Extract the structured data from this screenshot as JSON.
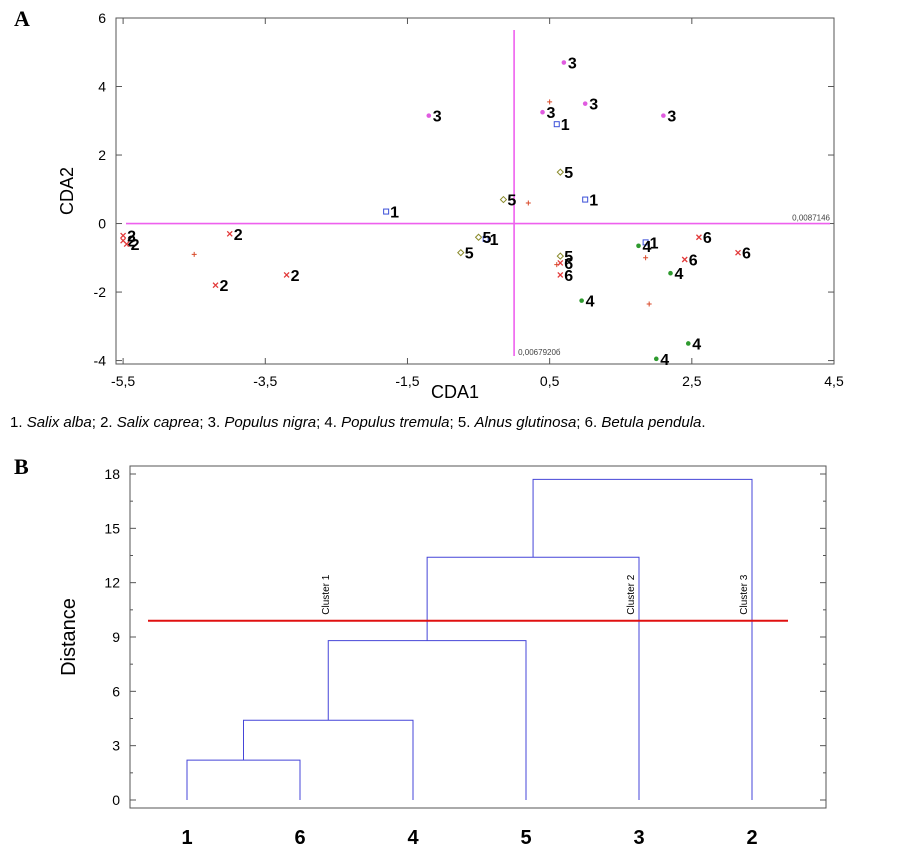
{
  "panels": {
    "a_label": "A",
    "b_label": "B"
  },
  "legend": [
    {
      "num": "1.",
      "name": "Salix alba",
      "sep": ";"
    },
    {
      "num": "2.",
      "name": "Salix caprea",
      "sep": ";"
    },
    {
      "num": "3.",
      "name": "Populus nigra",
      "sep": ";"
    },
    {
      "num": "4.",
      "name": "Populus tremula",
      "sep": ";"
    },
    {
      "num": "5.",
      "name": "Alnus glutinosa",
      "sep": ";"
    },
    {
      "num": "6.",
      "name": "Betula pendula",
      "sep": "."
    }
  ],
  "chart_data": [
    {
      "type": "scatter",
      "xlabel": "CDA1",
      "ylabel": "CDA2",
      "xlim": [
        -5.6,
        4.5
      ],
      "ylim": [
        -4.1,
        6.0
      ],
      "xticks": [
        -5.5,
        -3.5,
        -1.5,
        0.5,
        2.5,
        4.5
      ],
      "xtick_labels": [
        "-5,5",
        "-3,5",
        "-1,5",
        "0,5",
        "2,5",
        "4,5"
      ],
      "yticks": [
        -4,
        -2,
        0,
        2,
        4,
        6
      ],
      "ytick_labels": [
        "-4",
        "-2",
        "0",
        "2",
        "4",
        "6"
      ],
      "axis_annotations": {
        "x_axis": "0,0087146",
        "y_axis": "0,0067920б"
      },
      "group_colors": {
        "1": "#3b4fd8",
        "2": "#e23a3a",
        "3": "#e05be0",
        "4": "#2e9a2e",
        "5": "#8a8a2a",
        "6": "#e23a3a"
      },
      "points": [
        {
          "group": "1",
          "x": -1.8,
          "y": 0.35
        },
        {
          "group": "1",
          "x": 0.6,
          "y": 2.9
        },
        {
          "group": "1",
          "x": 1.0,
          "y": 0.7
        },
        {
          "group": "1",
          "x": -0.4,
          "y": -0.45
        },
        {
          "group": "1",
          "x": 1.85,
          "y": -0.55
        },
        {
          "group": "2",
          "x": -5.5,
          "y": -0.35
        },
        {
          "group": "2",
          "x": -5.5,
          "y": -0.5
        },
        {
          "group": "2",
          "x": -5.45,
          "y": -0.6
        },
        {
          "group": "2",
          "x": -4.0,
          "y": -0.3
        },
        {
          "group": "2",
          "x": -4.2,
          "y": -1.8
        },
        {
          "group": "2",
          "x": -3.2,
          "y": -1.5
        },
        {
          "group": "3",
          "x": -1.2,
          "y": 3.15
        },
        {
          "group": "3",
          "x": 0.7,
          "y": 4.7
        },
        {
          "group": "3",
          "x": 0.4,
          "y": 3.25
        },
        {
          "group": "3",
          "x": 1.0,
          "y": 3.5
        },
        {
          "group": "3",
          "x": 2.1,
          "y": 3.15
        },
        {
          "group": "4",
          "x": 1.75,
          "y": -0.65
        },
        {
          "group": "4",
          "x": 2.2,
          "y": -1.45
        },
        {
          "group": "4",
          "x": 0.95,
          "y": -2.25
        },
        {
          "group": "4",
          "x": 2.45,
          "y": -3.5
        },
        {
          "group": "4",
          "x": 2.0,
          "y": -3.95
        },
        {
          "group": "5",
          "x": 0.65,
          "y": 1.5
        },
        {
          "group": "5",
          "x": -0.15,
          "y": 0.7
        },
        {
          "group": "5",
          "x": -0.5,
          "y": -0.4
        },
        {
          "group": "5",
          "x": -0.75,
          "y": -0.85
        },
        {
          "group": "5",
          "x": 0.65,
          "y": -0.95
        },
        {
          "group": "6",
          "x": 0.65,
          "y": -1.15
        },
        {
          "group": "6",
          "x": 0.65,
          "y": -1.5
        },
        {
          "group": "6",
          "x": 2.6,
          "y": -0.4
        },
        {
          "group": "6",
          "x": 2.4,
          "y": -1.05
        },
        {
          "group": "6",
          "x": 3.15,
          "y": -0.85
        }
      ],
      "unlabeled_points": [
        {
          "x": -4.5,
          "y": -0.9
        },
        {
          "x": 0.5,
          "y": 3.55
        },
        {
          "x": 0.2,
          "y": 0.6
        },
        {
          "x": 1.85,
          "y": -1.0
        },
        {
          "x": 1.9,
          "y": -2.35
        },
        {
          "x": 0.6,
          "y": -1.2
        }
      ]
    },
    {
      "type": "dendrogram",
      "ylabel": "Distance",
      "ylim": [
        0,
        18
      ],
      "yticks": [
        0,
        3,
        6,
        9,
        12,
        15,
        18
      ],
      "leaves": [
        "1",
        "6",
        "4",
        "5",
        "3",
        "2"
      ],
      "merges": [
        {
          "left": 0,
          "right": 1,
          "height": 2.2
        },
        {
          "left": 6,
          "right": 2,
          "height": 4.4
        },
        {
          "left": 7,
          "right": 3,
          "height": 8.8
        },
        {
          "left": 8,
          "right": 4,
          "height": 13.4
        },
        {
          "left": 9,
          "right": 5,
          "height": 17.7
        }
      ],
      "cut_height": 9.9,
      "clusters": [
        {
          "name": "Cluster 1",
          "x_leaf": 1.3
        },
        {
          "name": "Cluster 2",
          "x_leaf": 4
        },
        {
          "name": "Cluster 3",
          "x_leaf": 5
        }
      ],
      "colors": {
        "branch": "#4545d8",
        "cut": "#e01010"
      }
    }
  ]
}
